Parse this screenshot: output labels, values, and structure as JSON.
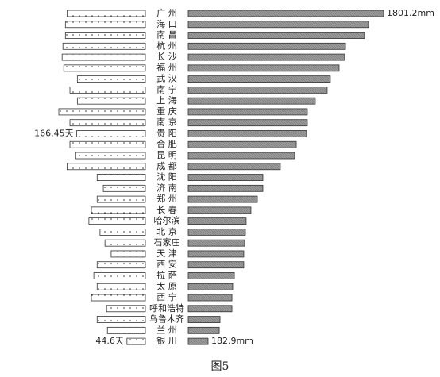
{
  "chart_data": {
    "type": "butterfly",
    "caption": "图5",
    "categories": [
      "广 州",
      "海 口",
      "南 昌",
      "杭 州",
      "长 沙",
      "福 州",
      "武 汉",
      "南 宁",
      "上 海",
      "重 庆",
      "南 京",
      "贵 阳",
      "合 肥",
      "昆 明",
      "成 都",
      "沈 阳",
      "济 南",
      "郑 州",
      "长 春",
      "哈尔滨",
      "北 京",
      "石家庄",
      "天 津",
      "西 安",
      "拉 萨",
      "太 原",
      "西 宁",
      "呼和浩特",
      "乌鲁木齐",
      "兰 州",
      "银 川"
    ],
    "series": [
      {
        "side": "left",
        "color": "#ffffff",
        "values": [
          190,
          194,
          194,
          200,
          202,
          198,
          165,
          183,
          165,
          210,
          183,
          166.45,
          183,
          169,
          190,
          117,
          102,
          117,
          131,
          137,
          110,
          98,
          83,
          117,
          125,
          117,
          131,
          94,
          117,
          92,
          44.6
        ],
        "value_labels": [
          null,
          null,
          null,
          null,
          null,
          null,
          null,
          null,
          null,
          null,
          null,
          "166.45天",
          null,
          null,
          null,
          null,
          null,
          null,
          null,
          null,
          null,
          null,
          null,
          null,
          null,
          null,
          null,
          null,
          null,
          null,
          "44.6天"
        ]
      },
      {
        "side": "right",
        "color": "#9a9a9a",
        "values": [
          1801.2,
          1662,
          1625,
          1450,
          1442,
          1391,
          1310,
          1281,
          1171,
          1098,
          1098,
          1091,
          996,
          981,
          849,
          688,
          688,
          637,
          578,
          534,
          527,
          520,
          512,
          512,
          425,
          410,
          403,
          403,
          293,
          286,
          182.9
        ],
        "value_labels": [
          "1801.2mm",
          null,
          null,
          null,
          null,
          null,
          null,
          null,
          null,
          null,
          null,
          null,
          null,
          null,
          null,
          null,
          null,
          null,
          null,
          null,
          null,
          null,
          null,
          null,
          null,
          null,
          null,
          null,
          null,
          null,
          "182.9mm"
        ]
      }
    ]
  }
}
